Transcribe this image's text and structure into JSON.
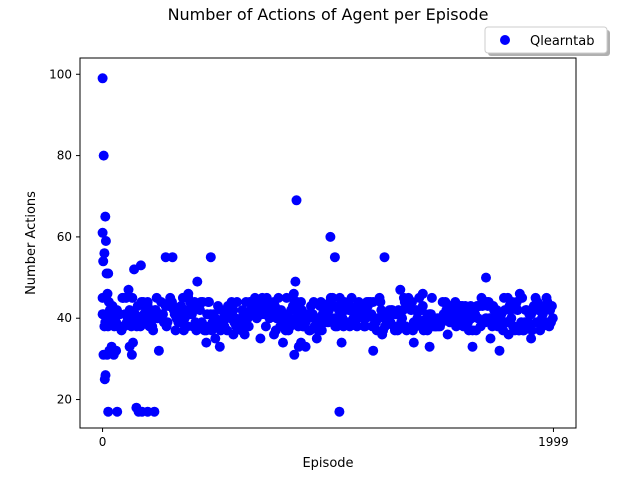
{
  "chart_data": {
    "type": "scatter",
    "title": "Number of Actions of Agent per Episode",
    "xlabel": "Episode",
    "ylabel": "Number Actions",
    "xlim": [
      -100,
      2099
    ],
    "ylim": [
      13,
      104
    ],
    "xticks": [
      0,
      1999
    ],
    "xtick_labels": [
      "0",
      "1999"
    ],
    "yticks": [
      20,
      40,
      60,
      80,
      100
    ],
    "ytick_labels": [
      "20",
      "40",
      "60",
      "80",
      "100"
    ],
    "grid": false,
    "legend_position": "upper-right-outside",
    "series": [
      {
        "name": "Qlearntab",
        "color": "#0000ff",
        "marker": "circle",
        "band": {
          "x_range": [
            0,
            1999
          ],
          "y_range": [
            37,
            45
          ],
          "step": 4
        },
        "points": [
          [
            0,
            99
          ],
          [
            5,
            80
          ],
          [
            0,
            61
          ],
          [
            3,
            54
          ],
          [
            8,
            56
          ],
          [
            12,
            65
          ],
          [
            15,
            59
          ],
          [
            18,
            51
          ],
          [
            25,
            51
          ],
          [
            22,
            46
          ],
          [
            0,
            45
          ],
          [
            4,
            31
          ],
          [
            10,
            25
          ],
          [
            13,
            26
          ],
          [
            20,
            31
          ],
          [
            30,
            32
          ],
          [
            40,
            33
          ],
          [
            50,
            31
          ],
          [
            60,
            32
          ],
          [
            25,
            17
          ],
          [
            65,
            17
          ],
          [
            120,
            33
          ],
          [
            130,
            31
          ],
          [
            135,
            34
          ],
          [
            150,
            18
          ],
          [
            160,
            17
          ],
          [
            175,
            17
          ],
          [
            200,
            17
          ],
          [
            230,
            17
          ],
          [
            115,
            47
          ],
          [
            140,
            52
          ],
          [
            170,
            53
          ],
          [
            200,
            44
          ],
          [
            250,
            32
          ],
          [
            280,
            55
          ],
          [
            310,
            55
          ],
          [
            380,
            46
          ],
          [
            420,
            49
          ],
          [
            460,
            34
          ],
          [
            480,
            55
          ],
          [
            500,
            35
          ],
          [
            520,
            33
          ],
          [
            580,
            36
          ],
          [
            630,
            36
          ],
          [
            700,
            35
          ],
          [
            760,
            36
          ],
          [
            800,
            34
          ],
          [
            848,
            46
          ],
          [
            850,
            31
          ],
          [
            855,
            49
          ],
          [
            860,
            69
          ],
          [
            870,
            33
          ],
          [
            880,
            34
          ],
          [
            900,
            33
          ],
          [
            950,
            35
          ],
          [
            1010,
            60
          ],
          [
            1030,
            55
          ],
          [
            1050,
            17
          ],
          [
            1060,
            34
          ],
          [
            1200,
            32
          ],
          [
            1240,
            36
          ],
          [
            1250,
            55
          ],
          [
            1320,
            47
          ],
          [
            1380,
            34
          ],
          [
            1420,
            46
          ],
          [
            1450,
            33
          ],
          [
            1530,
            36
          ],
          [
            1640,
            33
          ],
          [
            1700,
            50
          ],
          [
            1720,
            35
          ],
          [
            1760,
            32
          ],
          [
            1800,
            36
          ],
          [
            1850,
            46
          ],
          [
            1900,
            35
          ],
          [
            1950,
            38
          ]
        ]
      }
    ]
  }
}
